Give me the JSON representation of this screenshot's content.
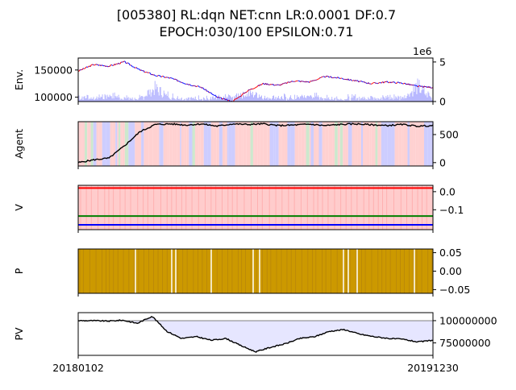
{
  "title_line1": "[005380] RL:dqn NET:cnn LR:0.0001 DF:0.7",
  "title_line2": "EPOCH:030/100 EPSILON:0.71",
  "colors": {
    "price_up": "#ff0000",
    "price_down": "#0000ff",
    "volume": "#b0b0ff",
    "agent_line": "#000000",
    "band_sell": "#ffcccc",
    "band_buy": "#c8c8ff",
    "band_hold": "#c8e6c8",
    "v_buy": "#0000ff",
    "v_sell": "#ff0000",
    "v_hold": "#008000",
    "p_fill": "#cc9900",
    "pv_fill": "#e6e6ff",
    "pv_line": "#000000",
    "pv_base": "#808080"
  },
  "chart_data": [
    {
      "type": "line",
      "ylabel": "Env.",
      "y_ticks": [
        "150000",
        "100000"
      ],
      "y_tick_values": [
        150000,
        100000
      ],
      "ylim": [
        92000,
        172000
      ],
      "right_axis": {
        "offset_text": "1e6",
        "ticks": [
          "5",
          "0"
        ],
        "tick_values": [
          5,
          0
        ],
        "ylim": [
          0,
          5.5
        ]
      },
      "series": [
        {
          "values": [
            148000,
            160000,
            157000,
            165000,
            150000,
            140000,
            135000,
            125000,
            118000,
            100000,
            92000,
            112000,
            125000,
            122000,
            130000,
            128000,
            138000,
            135000,
            130000,
            125000,
            128000,
            126000,
            120000,
            118000
          ]
        }
      ],
      "volume": [
        0.6,
        0.5,
        0.8,
        0.5,
        0.4,
        1.8,
        0.6,
        0.5,
        0.4,
        0.5,
        0.6,
        1.2,
        0.7,
        0.5,
        0.5,
        0.9,
        0.5,
        0.4,
        0.5,
        0.6,
        0.5,
        0.5,
        2.0,
        0.5
      ]
    },
    {
      "type": "line",
      "ylabel": "Agent",
      "y_ticks": [
        "500",
        "0"
      ],
      "y_tick_values": [
        500,
        0
      ],
      "ylim": [
        -60,
        730
      ],
      "series": [
        {
          "values": [
            0,
            50,
            80,
            300,
            550,
            680,
            690,
            670,
            690,
            650,
            690,
            680,
            690,
            660,
            670,
            685,
            660,
            680,
            690,
            675,
            660,
            680,
            650,
            660
          ]
        }
      ]
    },
    {
      "type": "line",
      "ylabel": "V",
      "y_ticks": [
        "0.0",
        "−0.1"
      ],
      "y_tick_values": [
        0.0,
        -0.1
      ],
      "ylim": [
        -0.21,
        0.035
      ],
      "series": [
        {
          "values": [
            0.02,
            0.02
          ]
        },
        {
          "values": [
            -0.135,
            -0.135
          ]
        },
        {
          "values": [
            -0.183,
            -0.183
          ]
        }
      ]
    },
    {
      "type": "area",
      "ylabel": "P",
      "y_ticks": [
        "0.05",
        "0.00",
        "−0.05"
      ],
      "y_tick_values": [
        0.05,
        0.0,
        -0.05
      ],
      "ylim": [
        -0.06,
        0.06
      ]
    },
    {
      "type": "line",
      "ylabel": "PV",
      "y_ticks": [
        "100000000",
        "75000000"
      ],
      "y_tick_values": [
        100000000,
        75000000
      ],
      "ylim": [
        61000000,
        109000000
      ],
      "base_value": 100000000,
      "x_ticks": [
        "20180102",
        "20191230"
      ],
      "series": [
        {
          "values": [
            100000000,
            100000000,
            99500000,
            100500000,
            97000000,
            105000000,
            88000000,
            80000000,
            82000000,
            78000000,
            80000000,
            72000000,
            65000000,
            70000000,
            74000000,
            80000000,
            82000000,
            88000000,
            90000000,
            85000000,
            82000000,
            80000000,
            79000000,
            76000000,
            78000000
          ]
        }
      ]
    }
  ]
}
